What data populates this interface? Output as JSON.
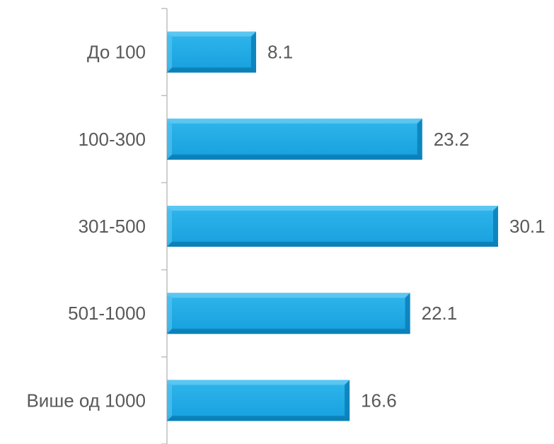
{
  "chart_data": {
    "type": "bar",
    "orientation": "horizontal",
    "categories": [
      "До 100",
      "100-300",
      "301-500",
      "501-1000",
      "Више од 1000"
    ],
    "values": [
      8.1,
      23.2,
      30.1,
      22.1,
      16.6
    ],
    "title": "",
    "xlabel": "",
    "ylabel": "",
    "xlim": [
      0,
      30.1
    ],
    "grid": false,
    "legend": "none",
    "colors": {
      "bar": "#1aa3e0",
      "bar_light": "#5cc6f2",
      "bar_dark": "#0b7fb8",
      "axis": "#bfbfbf",
      "text": "#595959"
    }
  }
}
